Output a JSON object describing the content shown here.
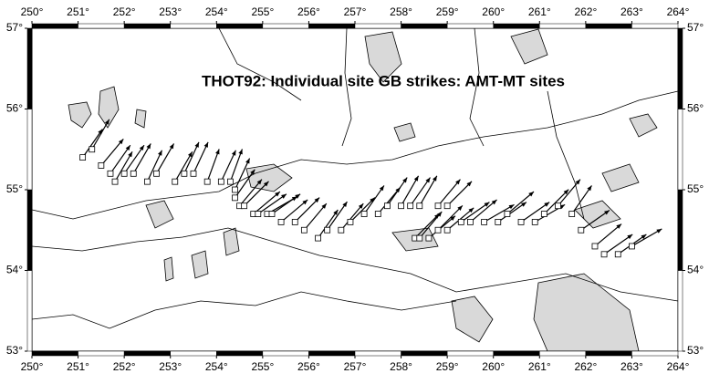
{
  "map": {
    "title": "THOT92: Individual site GB strikes: AMT-MT sites",
    "xlim": [
      250,
      264
    ],
    "ylim": [
      53,
      57
    ],
    "xticks": [
      {
        "value": 250,
        "label": "250°"
      },
      {
        "value": 251,
        "label": "251°"
      },
      {
        "value": 252,
        "label": "252°"
      },
      {
        "value": 253,
        "label": "253°"
      },
      {
        "value": 254,
        "label": "254°"
      },
      {
        "value": 255,
        "label": "255°"
      },
      {
        "value": 256,
        "label": "256°"
      },
      {
        "value": 257,
        "label": "257°"
      },
      {
        "value": 258,
        "label": "258°"
      },
      {
        "value": 259,
        "label": "259°"
      },
      {
        "value": 260,
        "label": "260°"
      },
      {
        "value": 261,
        "label": "261°"
      },
      {
        "value": 262,
        "label": "262°"
      },
      {
        "value": 263,
        "label": "263°"
      },
      {
        "value": 264,
        "label": "264°"
      }
    ],
    "yticks": [
      {
        "value": 53,
        "label": "53°"
      },
      {
        "value": 54,
        "label": "54°"
      },
      {
        "value": 55,
        "label": "55°"
      },
      {
        "value": 56,
        "label": "56°"
      },
      {
        "value": 57,
        "label": "57°"
      }
    ],
    "sites": [
      {
        "lon": 251.1,
        "lat": 55.4,
        "strike": 35
      },
      {
        "lon": 251.3,
        "lat": 55.5,
        "strike": 30
      },
      {
        "lon": 251.5,
        "lat": 55.3,
        "strike": 40
      },
      {
        "lon": 251.7,
        "lat": 55.2,
        "strike": 35
      },
      {
        "lon": 251.8,
        "lat": 55.1,
        "strike": 30
      },
      {
        "lon": 252.0,
        "lat": 55.2,
        "strike": 35
      },
      {
        "lon": 252.2,
        "lat": 55.2,
        "strike": 30
      },
      {
        "lon": 252.5,
        "lat": 55.1,
        "strike": 25
      },
      {
        "lon": 252.7,
        "lat": 55.2,
        "strike": 30
      },
      {
        "lon": 253.1,
        "lat": 55.1,
        "strike": 30
      },
      {
        "lon": 253.3,
        "lat": 55.2,
        "strike": 25
      },
      {
        "lon": 253.5,
        "lat": 55.2,
        "strike": 25
      },
      {
        "lon": 253.8,
        "lat": 55.1,
        "strike": 20
      },
      {
        "lon": 254.1,
        "lat": 55.1,
        "strike": 25
      },
      {
        "lon": 254.3,
        "lat": 55.1,
        "strike": 20
      },
      {
        "lon": 254.4,
        "lat": 55.0,
        "strike": 25
      },
      {
        "lon": 254.4,
        "lat": 54.9,
        "strike": 35
      },
      {
        "lon": 254.5,
        "lat": 54.8,
        "strike": 40
      },
      {
        "lon": 254.6,
        "lat": 54.8,
        "strike": 45
      },
      {
        "lon": 254.8,
        "lat": 54.7,
        "strike": 50
      },
      {
        "lon": 254.9,
        "lat": 54.7,
        "strike": 55
      },
      {
        "lon": 255.1,
        "lat": 54.7,
        "strike": 60
      },
      {
        "lon": 255.2,
        "lat": 54.7,
        "strike": 55
      },
      {
        "lon": 255.4,
        "lat": 54.6,
        "strike": 50
      },
      {
        "lon": 255.7,
        "lat": 54.6,
        "strike": 45
      },
      {
        "lon": 255.9,
        "lat": 54.5,
        "strike": 40
      },
      {
        "lon": 256.2,
        "lat": 54.4,
        "strike": 35
      },
      {
        "lon": 256.4,
        "lat": 54.5,
        "strike": 35
      },
      {
        "lon": 256.7,
        "lat": 54.5,
        "strike": 40
      },
      {
        "lon": 256.9,
        "lat": 54.6,
        "strike": 45
      },
      {
        "lon": 257.2,
        "lat": 54.7,
        "strike": 35
      },
      {
        "lon": 257.5,
        "lat": 54.7,
        "strike": 40
      },
      {
        "lon": 257.7,
        "lat": 54.8,
        "strike": 35
      },
      {
        "lon": 258.0,
        "lat": 54.8,
        "strike": 30
      },
      {
        "lon": 258.2,
        "lat": 54.8,
        "strike": 35
      },
      {
        "lon": 258.4,
        "lat": 54.8,
        "strike": 30
      },
      {
        "lon": 258.8,
        "lat": 54.8,
        "strike": 40
      },
      {
        "lon": 259.0,
        "lat": 54.8,
        "strike": 45
      },
      {
        "lon": 258.3,
        "lat": 54.4,
        "strike": 45
      },
      {
        "lon": 258.4,
        "lat": 54.4,
        "strike": 40
      },
      {
        "lon": 258.6,
        "lat": 54.4,
        "strike": 50
      },
      {
        "lon": 258.8,
        "lat": 54.5,
        "strike": 45
      },
      {
        "lon": 259.0,
        "lat": 54.5,
        "strike": 50
      },
      {
        "lon": 259.3,
        "lat": 54.6,
        "strike": 55
      },
      {
        "lon": 259.5,
        "lat": 54.6,
        "strike": 50
      },
      {
        "lon": 259.8,
        "lat": 54.6,
        "strike": 60
      },
      {
        "lon": 260.1,
        "lat": 54.6,
        "strike": 55
      },
      {
        "lon": 260.3,
        "lat": 54.7,
        "strike": 50
      },
      {
        "lon": 260.6,
        "lat": 54.6,
        "strike": 55
      },
      {
        "lon": 260.9,
        "lat": 54.6,
        "strike": 60
      },
      {
        "lon": 261.1,
        "lat": 54.7,
        "strike": 45
      },
      {
        "lon": 261.4,
        "lat": 54.8,
        "strike": 40
      },
      {
        "lon": 261.7,
        "lat": 54.7,
        "strike": 35
      },
      {
        "lon": 261.9,
        "lat": 54.5,
        "strike": 55
      },
      {
        "lon": 262.2,
        "lat": 54.3,
        "strike": 50
      },
      {
        "lon": 262.4,
        "lat": 54.2,
        "strike": 55
      },
      {
        "lon": 262.7,
        "lat": 54.2,
        "strike": 55
      },
      {
        "lon": 263.0,
        "lat": 54.3,
        "strike": 60
      }
    ]
  }
}
